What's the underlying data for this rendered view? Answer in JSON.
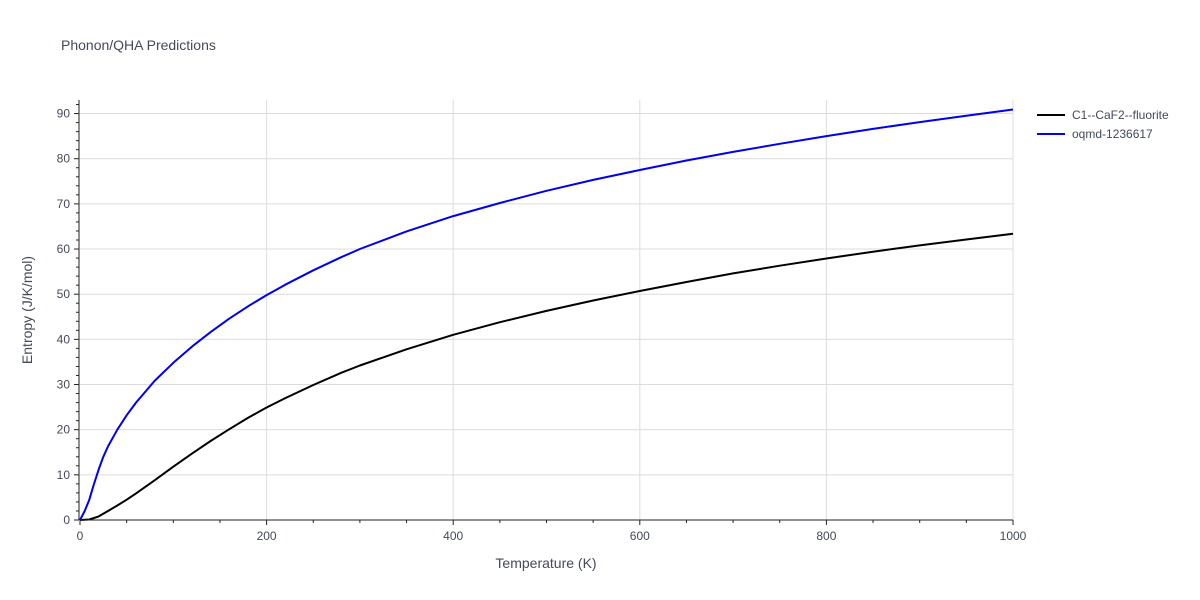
{
  "chart_data": {
    "type": "line",
    "title": "Phonon/QHA Predictions",
    "xlabel": "Temperature (K)",
    "ylabel": "Entropy (J/K/mol)",
    "xlim": [
      0,
      1000
    ],
    "ylim": [
      0,
      93
    ],
    "xticks": [
      0,
      200,
      400,
      600,
      800,
      1000
    ],
    "yticks": [
      0,
      10,
      20,
      30,
      40,
      50,
      60,
      70,
      80,
      90
    ],
    "grid": true,
    "legend_position": "top-right",
    "series": [
      {
        "name": "C1--CaF2--fluorite",
        "color": "#000000",
        "x": [
          0,
          10,
          20,
          30,
          40,
          50,
          60,
          80,
          100,
          120,
          140,
          160,
          180,
          200,
          220,
          250,
          280,
          300,
          350,
          400,
          450,
          500,
          550,
          600,
          650,
          700,
          750,
          800,
          850,
          900,
          950,
          1000
        ],
        "y": [
          0,
          0.1,
          0.8,
          2.0,
          3.2,
          4.5,
          5.9,
          8.8,
          11.8,
          14.7,
          17.5,
          20.1,
          22.6,
          24.9,
          27.0,
          29.9,
          32.6,
          34.2,
          37.8,
          41.0,
          43.8,
          46.3,
          48.6,
          50.7,
          52.7,
          54.6,
          56.3,
          57.9,
          59.4,
          60.8,
          62.1,
          63.4
        ]
      },
      {
        "name": "oqmd-1236617",
        "color": "#0000ee",
        "x": [
          0,
          5,
          10,
          15,
          20,
          25,
          30,
          40,
          50,
          60,
          80,
          100,
          120,
          140,
          160,
          180,
          200,
          220,
          250,
          280,
          300,
          350,
          400,
          450,
          500,
          550,
          600,
          650,
          700,
          750,
          800,
          850,
          900,
          950,
          1000
        ],
        "y": [
          0,
          2.0,
          4.5,
          8.0,
          11.2,
          14.0,
          16.3,
          20.0,
          23.2,
          26.0,
          30.8,
          34.8,
          38.4,
          41.6,
          44.6,
          47.3,
          49.8,
          52.1,
          55.3,
          58.2,
          60.0,
          63.9,
          67.3,
          70.2,
          72.9,
          75.3,
          77.5,
          79.6,
          81.5,
          83.3,
          85.0,
          86.6,
          88.1,
          89.5,
          90.9
        ]
      }
    ]
  }
}
